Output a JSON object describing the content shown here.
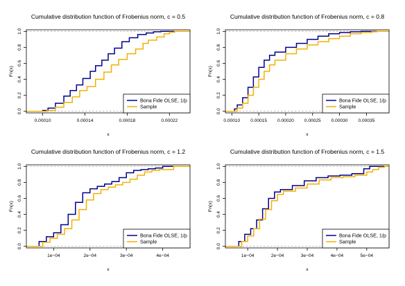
{
  "colors": {
    "olse": "#00008B",
    "sample": "#F4B000",
    "ref": "#9a9a9a",
    "axis": "#000000"
  },
  "chart_data": [
    {
      "type": "line",
      "title": "Cumulative distribution function of Frobenius norm, c = 0.5",
      "xlabel": "x",
      "ylabel": "Fn(x)",
      "xlim": [
        8.45e-05,
        0.0002395
      ],
      "ylim": [
        -0.02,
        1.02
      ],
      "xticks": [
        0.0001,
        0.00014,
        0.00018,
        0.00022
      ],
      "xtick_labels": [
        "0.00010",
        "0.00014",
        "0.00018",
        "0.00022"
      ],
      "yticks": [
        0.0,
        0.2,
        0.4,
        0.6,
        0.8,
        1.0
      ],
      "ytick_labels": [
        "0.0",
        "0.2",
        "0.4",
        "0.6",
        "0.8",
        "1.0"
      ],
      "reference_lines": [
        0,
        1
      ],
      "legend": {
        "placement": "bottom-right",
        "entries": [
          "Bona Fide OLSE, 1/p",
          "Sample"
        ]
      },
      "series": [
        {
          "name": "Bona Fide OLSE, 1/p",
          "x": [
            8.45e-05,
            9.4e-05,
            0.0001,
            0.000105,
            0.000112,
            0.00012,
            0.000126,
            0.000132,
            0.000138,
            0.000145,
            0.00015,
            0.000156,
            0.000162,
            0.000168,
            0.000175,
            0.000182,
            0.00019,
            0.000198,
            0.000205,
            0.000212,
            0.0002395
          ],
          "y": [
            0,
            0,
            0.01,
            0.04,
            0.1,
            0.19,
            0.26,
            0.33,
            0.41,
            0.5,
            0.57,
            0.64,
            0.72,
            0.79,
            0.87,
            0.92,
            0.96,
            0.98,
            0.995,
            1,
            1
          ]
        },
        {
          "name": "Sample",
          "x": [
            8.45e-05,
            9.5e-05,
            0.000104,
            0.000112,
            0.00012,
            0.000128,
            0.000135,
            0.000142,
            0.00015,
            0.000158,
            0.000165,
            0.000172,
            0.00018,
            0.000188,
            0.000195,
            0.0002,
            0.000208,
            0.000215,
            0.00022,
            0.000225,
            0.0002395
          ],
          "y": [
            0,
            0,
            0.01,
            0.05,
            0.11,
            0.18,
            0.26,
            0.31,
            0.4,
            0.49,
            0.58,
            0.65,
            0.72,
            0.78,
            0.85,
            0.89,
            0.93,
            0.97,
            0.99,
            1,
            1
          ]
        }
      ]
    },
    {
      "type": "line",
      "title": "Cumulative distribution function of Frobenius norm, c = 0.8",
      "xlabel": "x",
      "ylabel": "Fn(x)",
      "xlim": [
        8.8e-05,
        0.000392
      ],
      "ylim": [
        -0.02,
        1.02
      ],
      "xticks": [
        0.0001,
        0.00015,
        0.0002,
        0.00025,
        0.0003,
        0.00035
      ],
      "xtick_labels": [
        "0.00010",
        "0.00015",
        "0.00020",
        "0.00025",
        "0.00030",
        "0.00035"
      ],
      "yticks": [
        0.0,
        0.2,
        0.4,
        0.6,
        0.8,
        1.0
      ],
      "ytick_labels": [
        "0.0",
        "0.2",
        "0.4",
        "0.6",
        "0.8",
        "1.0"
      ],
      "reference_lines": [
        0,
        1
      ],
      "legend": {
        "placement": "bottom-right",
        "entries": [
          "Bona Fide OLSE, 1/p",
          "Sample"
        ]
      },
      "series": [
        {
          "name": "Bona Fide OLSE, 1/p",
          "x": [
            8.8e-05,
            0.0001,
            0.000105,
            0.00011,
            0.00012,
            0.00013,
            0.00014,
            0.00015,
            0.00016,
            0.00017,
            0.00018,
            0.0002,
            0.00022,
            0.00024,
            0.00026,
            0.00028,
            0.0003,
            0.00032,
            0.00034,
            0.00035,
            0.000392
          ],
          "y": [
            0,
            0,
            0.03,
            0.08,
            0.17,
            0.3,
            0.43,
            0.55,
            0.64,
            0.7,
            0.74,
            0.8,
            0.85,
            0.9,
            0.94,
            0.97,
            0.985,
            0.995,
            1,
            1,
            1
          ]
        },
        {
          "name": "Sample",
          "x": [
            8.8e-05,
            0.000102,
            0.00011,
            0.00012,
            0.00013,
            0.00014,
            0.00015,
            0.00016,
            0.00017,
            0.00018,
            0.0002,
            0.00022,
            0.00024,
            0.00026,
            0.00028,
            0.0003,
            0.00032,
            0.00034,
            0.00036,
            0.00037,
            0.000392
          ],
          "y": [
            0,
            0,
            0.04,
            0.1,
            0.2,
            0.3,
            0.4,
            0.5,
            0.58,
            0.64,
            0.72,
            0.78,
            0.83,
            0.87,
            0.91,
            0.94,
            0.97,
            0.985,
            0.995,
            1,
            1
          ]
        }
      ]
    },
    {
      "type": "line",
      "title": "Cumulative distribution function of Frobenius norm, c = 1.2",
      "xlabel": "x",
      "ylabel": "Fn(x)",
      "xlim": [
        2.5e-05,
        0.000475
      ],
      "ylim": [
        -0.02,
        1.02
      ],
      "xticks": [
        0.0001,
        0.0002,
        0.0003,
        0.0004
      ],
      "xtick_labels": [
        "1e−04",
        "2e−04",
        "3e−04",
        "4e−04"
      ],
      "yticks": [
        0.0,
        0.2,
        0.4,
        0.6,
        0.8,
        1.0
      ],
      "ytick_labels": [
        "0.0",
        "0.2",
        "0.4",
        "0.6",
        "0.8",
        "1.0"
      ],
      "reference_lines": [
        0,
        1
      ],
      "legend": {
        "placement": "bottom-right",
        "entries": [
          "Bona Fide OLSE, 1/p",
          "Sample"
        ]
      },
      "series": [
        {
          "name": "Bona Fide OLSE, 1/p",
          "x": [
            2.5e-05,
            4e-05,
            6e-05,
            8e-05,
            0.0001,
            0.00012,
            0.00014,
            0.00016,
            0.00018,
            0.0002,
            0.00022,
            0.00024,
            0.00026,
            0.00028,
            0.0003,
            0.00032,
            0.00034,
            0.00036,
            0.00038,
            0.0004,
            0.000475
          ],
          "y": [
            0,
            0,
            0.06,
            0.12,
            0.17,
            0.27,
            0.4,
            0.55,
            0.67,
            0.72,
            0.75,
            0.78,
            0.81,
            0.86,
            0.92,
            0.95,
            0.96,
            0.97,
            0.98,
            1,
            1
          ]
        },
        {
          "name": "Sample",
          "x": [
            2.5e-05,
            5e-05,
            7e-05,
            9e-05,
            0.00011,
            0.00013,
            0.00015,
            0.00017,
            0.00019,
            0.00021,
            0.00023,
            0.00025,
            0.00027,
            0.00029,
            0.00031,
            0.00033,
            0.00035,
            0.00037,
            0.00039,
            0.00043,
            0.000475
          ],
          "y": [
            0,
            0,
            0.05,
            0.1,
            0.15,
            0.22,
            0.33,
            0.46,
            0.58,
            0.66,
            0.71,
            0.74,
            0.77,
            0.8,
            0.84,
            0.89,
            0.93,
            0.95,
            0.96,
            1,
            1
          ]
        }
      ]
    },
    {
      "type": "line",
      "title": "Cumulative distribution function of Frobenius norm, c = 1.5",
      "xlabel": "x",
      "ylabel": "Fn(x)",
      "xlim": [
        2.5e-05,
        0.000575
      ],
      "ylim": [
        -0.02,
        1.02
      ],
      "xticks": [
        0.0001,
        0.0002,
        0.0003,
        0.0004,
        0.0005
      ],
      "xtick_labels": [
        "1e−04",
        "2e−04",
        "3e−04",
        "4e−04",
        "5e−04"
      ],
      "yticks": [
        0.0,
        0.2,
        0.4,
        0.6,
        0.8,
        1.0
      ],
      "ytick_labels": [
        "0.0",
        "0.2",
        "0.4",
        "0.6",
        "0.8",
        "1.0"
      ],
      "reference_lines": [
        0,
        1
      ],
      "legend": {
        "placement": "bottom-right",
        "entries": [
          "Bona Fide OLSE, 1/p",
          "Sample"
        ]
      },
      "series": [
        {
          "name": "Bona Fide OLSE, 1/p",
          "x": [
            2.5e-05,
            5e-05,
            7e-05,
            9e-05,
            0.00011,
            0.00013,
            0.00015,
            0.00017,
            0.00019,
            0.00021,
            0.00025,
            0.00029,
            0.00033,
            0.00037,
            0.00041,
            0.00045,
            0.00049,
            0.00051,
            0.00054,
            0.00056,
            0.000575
          ],
          "y": [
            0,
            0,
            0.06,
            0.15,
            0.22,
            0.33,
            0.47,
            0.6,
            0.68,
            0.71,
            0.76,
            0.82,
            0.86,
            0.88,
            0.89,
            0.91,
            0.97,
            1,
            1,
            1,
            1
          ]
        },
        {
          "name": "Sample",
          "x": [
            2.5e-05,
            6e-05,
            8e-05,
            0.0001,
            0.00012,
            0.00014,
            0.00016,
            0.00018,
            0.0002,
            0.00022,
            0.00026,
            0.0003,
            0.00034,
            0.00038,
            0.00042,
            0.00046,
            0.0005,
            0.00052,
            0.00054,
            0.00056,
            0.000575
          ],
          "y": [
            0,
            0,
            0.06,
            0.13,
            0.22,
            0.34,
            0.46,
            0.57,
            0.65,
            0.69,
            0.73,
            0.78,
            0.83,
            0.86,
            0.87,
            0.89,
            0.93,
            0.96,
            0.99,
            1,
            1
          ]
        }
      ]
    }
  ]
}
